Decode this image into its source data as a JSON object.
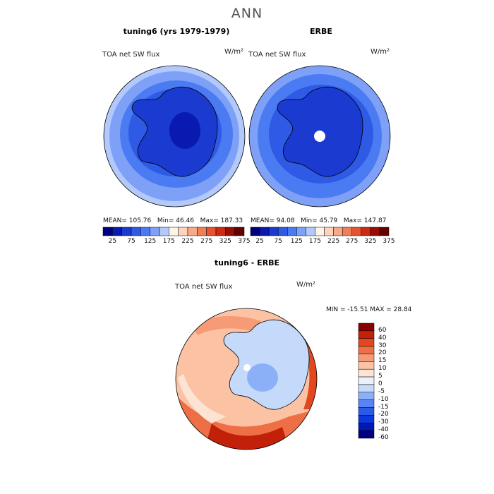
{
  "page": {
    "title": "ANN"
  },
  "palette_hex": {
    "abs": [
      "#00007f",
      "#0a1ab0",
      "#1a3ad0",
      "#2e5ae6",
      "#4b7bf2",
      "#7ea1f7",
      "#b3c9fb",
      "#fff3e8",
      "#fcd3bd",
      "#f8a888",
      "#f07f58",
      "#e55330",
      "#cc2a12",
      "#9a0d05",
      "#660000"
    ],
    "diff": [
      "#000080",
      "#0018b8",
      "#0a38dc",
      "#2a5ae8",
      "#5a84f3",
      "#8cb0f8",
      "#c5d9fb",
      "#eaf1fd",
      "#fde3d3",
      "#fbc3a4",
      "#f69b75",
      "#ee6f46",
      "#e34720",
      "#c22008",
      "#8a0000"
    ]
  },
  "chart_data": [
    {
      "type": "heatmap",
      "title": "tuning6 (yrs 1979-1979)",
      "label_left": "TOA net SW flux",
      "units": "W/m²",
      "stats": {
        "mean_label": "MEAN=",
        "mean": "105.76",
        "min_label": "Min=",
        "min": "46.46",
        "max_label": "Max=",
        "max": "187.33"
      },
      "colorbar_ticks": [
        "25",
        "75",
        "125",
        "175",
        "225",
        "275",
        "325",
        "375"
      ]
    },
    {
      "type": "heatmap",
      "title": "ERBE",
      "label_left": "TOA net SW flux",
      "units": "W/m²",
      "stats": {
        "mean_label": "MEAN=",
        "mean": "94.08",
        "min_label": "Min=",
        "min": "45.79",
        "max_label": "Max=",
        "max": "147.87"
      },
      "colorbar_ticks": [
        "25",
        "75",
        "125",
        "175",
        "225",
        "275",
        "325",
        "375"
      ]
    },
    {
      "type": "heatmap",
      "title": "tuning6 - ERBE",
      "label_left": "TOA net SW flux",
      "units": "W/m²",
      "stats_line": "MIN = -15.51  MAX =  28.84",
      "colorbar_ticks": [
        "60",
        "40",
        "30",
        "20",
        "15",
        "10",
        "5",
        "0",
        "-5",
        "-10",
        "-15",
        "-20",
        "-30",
        "-40",
        "-60"
      ]
    }
  ]
}
